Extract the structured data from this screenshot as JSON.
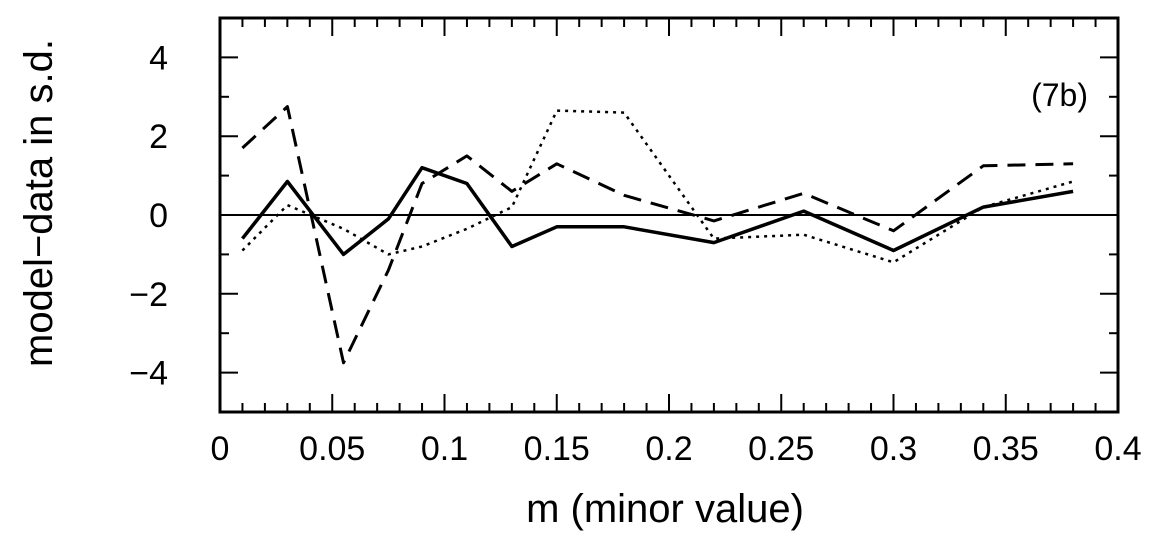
{
  "chart_data": {
    "type": "line",
    "title": "",
    "xlabel": "m (minor value)",
    "ylabel": "model−data in s.d.",
    "annotation": "(7b)",
    "xlim": [
      0,
      0.4
    ],
    "ylim": [
      -5,
      5
    ],
    "x_ticks": [
      0,
      0.05,
      0.1,
      0.15,
      0.2,
      0.25,
      0.3,
      0.35,
      0.4
    ],
    "x_tick_labels": [
      "0",
      "0.05",
      "0.1",
      "0.15",
      "0.2",
      "0.25",
      "0.3",
      "0.35",
      "0.4"
    ],
    "y_ticks": [
      -4,
      -2,
      0,
      2,
      4
    ],
    "y_tick_labels": [
      "−4",
      "−2",
      "0",
      "2",
      "4"
    ],
    "grid": false,
    "reference_line": 0,
    "series": [
      {
        "style": "solid",
        "x": [
          0.01,
          0.03,
          0.055,
          0.075,
          0.09,
          0.11,
          0.13,
          0.15,
          0.18,
          0.22,
          0.26,
          0.3,
          0.34,
          0.38
        ],
        "y": [
          -0.6,
          0.85,
          -1.0,
          -0.1,
          1.2,
          0.8,
          -0.8,
          -0.3,
          -0.3,
          -0.7,
          0.1,
          -0.9,
          0.2,
          0.6
        ]
      },
      {
        "style": "dashed",
        "x": [
          0.01,
          0.03,
          0.055,
          0.075,
          0.09,
          0.11,
          0.13,
          0.15,
          0.18,
          0.22,
          0.26,
          0.3,
          0.34,
          0.38
        ],
        "y": [
          1.7,
          2.75,
          -3.75,
          -1.4,
          0.8,
          1.5,
          0.6,
          1.3,
          0.5,
          -0.15,
          0.55,
          -0.4,
          1.25,
          1.3
        ]
      },
      {
        "style": "dotted",
        "x": [
          0.01,
          0.03,
          0.055,
          0.075,
          0.09,
          0.11,
          0.13,
          0.15,
          0.18,
          0.22,
          0.26,
          0.3,
          0.34,
          0.38
        ],
        "y": [
          -0.9,
          0.25,
          -0.35,
          -1.0,
          -0.8,
          -0.35,
          0.2,
          2.65,
          2.6,
          -0.6,
          -0.5,
          -1.2,
          0.2,
          0.85
        ]
      }
    ]
  }
}
